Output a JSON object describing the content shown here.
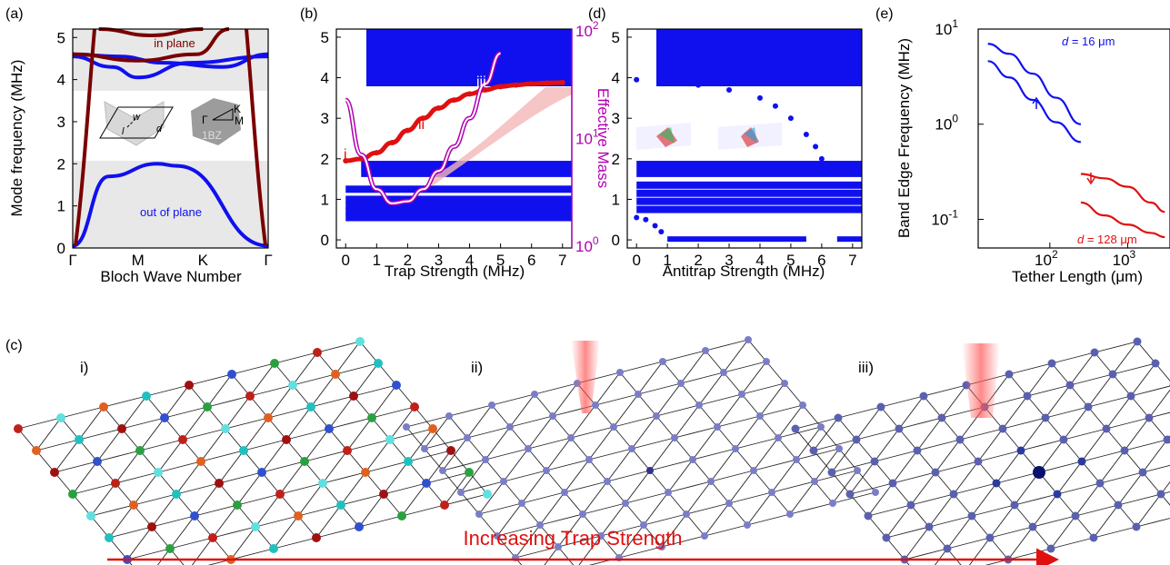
{
  "panel_labels": {
    "a": "(a)",
    "b": "(b)",
    "c": "(c)",
    "d": "(d)",
    "e": "(e)"
  },
  "chart_data": [
    {
      "id": "a",
      "type": "line",
      "xlabel": "Bloch Wave Number",
      "ylabel": "Mode frequency (MHz)",
      "ylim": [
        0,
        5.2
      ],
      "x_ticks": [
        "Γ",
        "M",
        "K",
        "Γ"
      ],
      "y_ticks": [
        0,
        1,
        2,
        3,
        4,
        5
      ],
      "bandgaps": [
        [
          2.0,
          3.7
        ]
      ],
      "shaded_bands": [
        [
          0,
          2.0
        ],
        [
          3.7,
          5.2
        ]
      ],
      "annotations": [
        "in plane",
        "out of plane"
      ],
      "inset_labels": {
        "w": "w",
        "l": "l",
        "d": "d",
        "gamma": "Γ",
        "K": "K",
        "M": "M",
        "bz": "1BZ"
      },
      "series": [
        {
          "color": "#1010ee",
          "values": [
            0.05,
            1.7,
            2.0,
            1.95,
            0.05
          ],
          "x": [
            0,
            0.55,
            1.3,
            1.6,
            3
          ]
        },
        {
          "color": "#1010ee",
          "values": [
            4.55,
            4.3,
            4.05,
            4.4,
            4.55
          ],
          "x": [
            0,
            0.6,
            1.0,
            1.8,
            3
          ]
        },
        {
          "color": "#1010ee",
          "values": [
            4.6,
            4.55,
            4.4,
            4.3,
            4.6
          ],
          "x": [
            0,
            0.7,
            1.4,
            2.3,
            3
          ]
        },
        {
          "color": "#7a0000",
          "values": [
            4.6,
            4.45,
            4.6,
            5.2
          ],
          "x": [
            0,
            1.0,
            1.9,
            2.4
          ]
        },
        {
          "color": "#7a0000",
          "values": [
            5.2,
            5.05,
            5.2
          ],
          "x": [
            0.4,
            1.2,
            2.0
          ]
        }
      ]
    },
    {
      "id": "b",
      "type": "scatter",
      "xlabel": "Trap Strength (MHz)",
      "ylabel": "",
      "y2label": "Effective Mass",
      "xlim": [
        -0.3,
        7.3
      ],
      "ylim": [
        -0.2,
        5.2
      ],
      "x_ticks": [
        0,
        1,
        2,
        3,
        4,
        5,
        6,
        7
      ],
      "y_ticks": [
        0,
        1,
        2,
        3,
        4,
        5
      ],
      "y2_scale": "log",
      "y2_ticks": [
        "10",
        "10",
        "10"
      ],
      "y2_tick_exponents": [
        "0",
        "1",
        "2"
      ],
      "upper_band": [
        3.8,
        5.1
      ],
      "lower_band_levels": [
        1.25,
        1.0,
        0.85,
        0.7
      ],
      "lower_band_top": [
        1.55,
        1.95
      ],
      "trapped_mode": {
        "x": [
          0,
          0.5,
          1,
          1.5,
          2,
          2.5,
          3,
          3.5,
          4,
          4.5,
          5,
          5.5,
          6,
          6.5,
          7
        ],
        "y": [
          1.95,
          2.0,
          2.15,
          2.4,
          2.7,
          3.0,
          3.25,
          3.45,
          3.6,
          3.7,
          3.78,
          3.82,
          3.85,
          3.87,
          3.88
        ]
      },
      "effective_mass": {
        "x": [
          0,
          0.5,
          1,
          1.5,
          2,
          2.5,
          3,
          3.5,
          4,
          4.5,
          5
        ],
        "y": [
          3.45,
          2.1,
          1.25,
          0.9,
          0.95,
          1.25,
          1.7,
          2.3,
          3.0,
          3.85,
          4.6
        ]
      },
      "labels": [
        "i",
        "ii",
        "iii"
      ]
    },
    {
      "id": "d",
      "type": "scatter",
      "xlabel": "Antitrap Strength (MHz)",
      "xlim": [
        -0.3,
        7.3
      ],
      "ylim": [
        -0.2,
        5.2
      ],
      "x_ticks": [
        0,
        1,
        2,
        3,
        4,
        5,
        6,
        7
      ],
      "y_ticks": [
        0,
        1,
        2,
        3,
        4,
        5
      ],
      "upper_band": [
        3.8,
        5.1
      ],
      "antitrapped_mode": {
        "x": [
          0,
          1,
          2,
          3,
          4,
          4.5,
          5,
          5.5,
          5.8,
          6.0,
          6.1
        ],
        "y": [
          3.95,
          3.9,
          3.82,
          3.7,
          3.5,
          3.3,
          3.0,
          2.6,
          2.3,
          2.0,
          1.8
        ]
      }
    },
    {
      "id": "e",
      "type": "line",
      "xlabel": "Tether Length (μm)",
      "ylabel": "Band Edge Frequency (MHz)",
      "xscale": "log",
      "yscale": "log",
      "x_ticks": [
        "10",
        "10"
      ],
      "x_tick_exponents": [
        "2",
        "3"
      ],
      "y_ticks": [
        "10",
        "10",
        "10"
      ],
      "y_tick_exponents": [
        "-1",
        "0",
        "1"
      ],
      "annotations": [
        {
          "italic": "d",
          "rest": " = 16 μm"
        },
        {
          "italic": "d",
          "rest": " = 128 μm"
        }
      ],
      "series": [
        {
          "color": "#1010ee",
          "x": [
            16,
            30,
            60,
            120,
            250
          ],
          "y": [
            7.0,
            5.5,
            3.4,
            1.9,
            1.0
          ]
        },
        {
          "color": "#1010ee",
          "x": [
            16,
            30,
            60,
            120,
            250
          ],
          "y": [
            4.6,
            3.1,
            1.8,
            1.05,
            0.65
          ]
        },
        {
          "color": "#e01010",
          "x": [
            250,
            500,
            1000,
            2000,
            3000
          ],
          "y": [
            0.3,
            0.27,
            0.22,
            0.15,
            0.12
          ]
        },
        {
          "color": "#e01010",
          "x": [
            250,
            500,
            1000,
            2000,
            3000
          ],
          "y": [
            0.15,
            0.11,
            0.088,
            0.072,
            0.065
          ]
        }
      ]
    }
  ],
  "panel_c": {
    "sublabels": [
      "i)",
      "ii)",
      "iii)"
    ],
    "arrow_label": "Increasing Trap Strength",
    "arrow_color": "#e01010"
  }
}
